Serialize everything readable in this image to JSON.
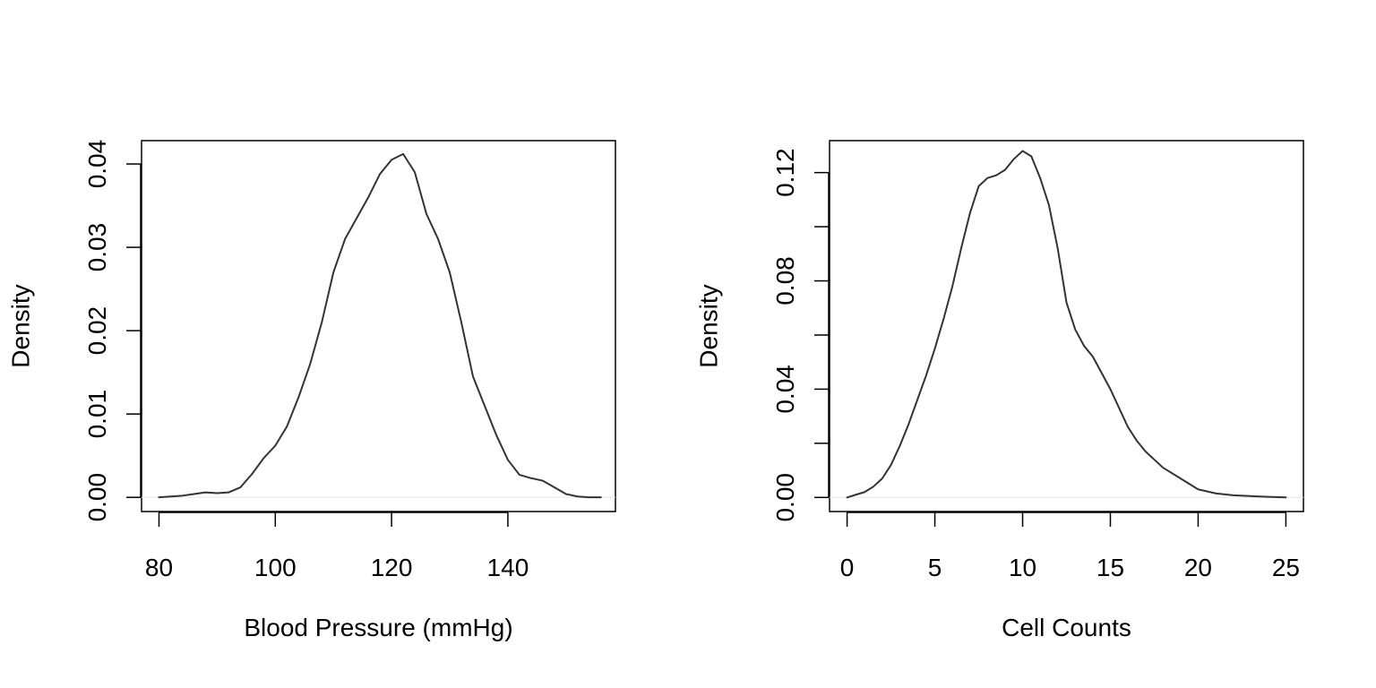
{
  "chart_data": [
    {
      "type": "line",
      "title": "",
      "xlabel": "Blood Pressure (mmHg)",
      "ylabel": "Density",
      "xlim": [
        77,
        158.5
      ],
      "ylim": [
        -0.0017,
        0.0428
      ],
      "xticks": [
        80,
        100,
        120,
        140
      ],
      "xtick_labels": [
        "80",
        "100",
        "120",
        "140"
      ],
      "yticks": [
        0.0,
        0.01,
        0.02,
        0.03,
        0.04
      ],
      "ytick_labels": [
        "0.00",
        "0.01",
        "0.02",
        "0.03",
        "0.04"
      ],
      "grid": false,
      "legend": "none",
      "zero_line": true,
      "series": [
        {
          "x": [
            80,
            84,
            86,
            88,
            90,
            92,
            94,
            96,
            98,
            100,
            102,
            104,
            106,
            108,
            110,
            112,
            114,
            116,
            118,
            120,
            122,
            124,
            126,
            128,
            130,
            132,
            134,
            136,
            138,
            140,
            142,
            144,
            146,
            148,
            150,
            152,
            154,
            156
          ],
          "y": [
            0.0,
            0.0002,
            0.0004,
            0.0006,
            0.0005,
            0.0006,
            0.0012,
            0.0028,
            0.0047,
            0.0062,
            0.0085,
            0.012,
            0.016,
            0.021,
            0.027,
            0.031,
            0.0335,
            0.036,
            0.0388,
            0.0405,
            0.0412,
            0.039,
            0.034,
            0.031,
            0.027,
            0.021,
            0.0145,
            0.011,
            0.0075,
            0.0045,
            0.0027,
            0.0023,
            0.002,
            0.0012,
            0.0004,
            0.0001,
            0.0,
            0.0
          ],
          "color": "#333333"
        }
      ]
    },
    {
      "type": "line",
      "title": "",
      "xlabel": "Cell Counts",
      "ylabel": "Density",
      "xlim": [
        -1,
        26
      ],
      "ylim": [
        -0.0052,
        0.1318
      ],
      "xticks": [
        0,
        5,
        10,
        15,
        20,
        25
      ],
      "xtick_labels": [
        "0",
        "5",
        "10",
        "15",
        "20",
        "25"
      ],
      "yticks": [
        0.0,
        0.02,
        0.04,
        0.06,
        0.08,
        0.1,
        0.12
      ],
      "ytick_labels": [
        "0.00",
        "",
        "0.04",
        "",
        "0.08",
        "",
        "0.12"
      ],
      "grid": false,
      "legend": "none",
      "zero_line": true,
      "series": [
        {
          "x": [
            0,
            0.5,
            1,
            1.5,
            2,
            2.5,
            3,
            3.5,
            4,
            4.5,
            5,
            5.5,
            6,
            6.5,
            7,
            7.5,
            8,
            8.5,
            9,
            9.5,
            10,
            10.5,
            11,
            11.5,
            12,
            12.5,
            13,
            13.5,
            14,
            14.5,
            15,
            15.5,
            16,
            16.5,
            17,
            18,
            19,
            20,
            21,
            22,
            23,
            24,
            25
          ],
          "y": [
            0.0,
            0.001,
            0.002,
            0.004,
            0.007,
            0.012,
            0.019,
            0.027,
            0.036,
            0.045,
            0.055,
            0.066,
            0.078,
            0.092,
            0.105,
            0.115,
            0.118,
            0.119,
            0.121,
            0.125,
            0.128,
            0.126,
            0.118,
            0.108,
            0.092,
            0.072,
            0.062,
            0.056,
            0.052,
            0.046,
            0.04,
            0.033,
            0.026,
            0.021,
            0.017,
            0.011,
            0.007,
            0.003,
            0.0015,
            0.0008,
            0.0005,
            0.0002,
            0.0
          ],
          "color": "#333333"
        }
      ]
    }
  ]
}
